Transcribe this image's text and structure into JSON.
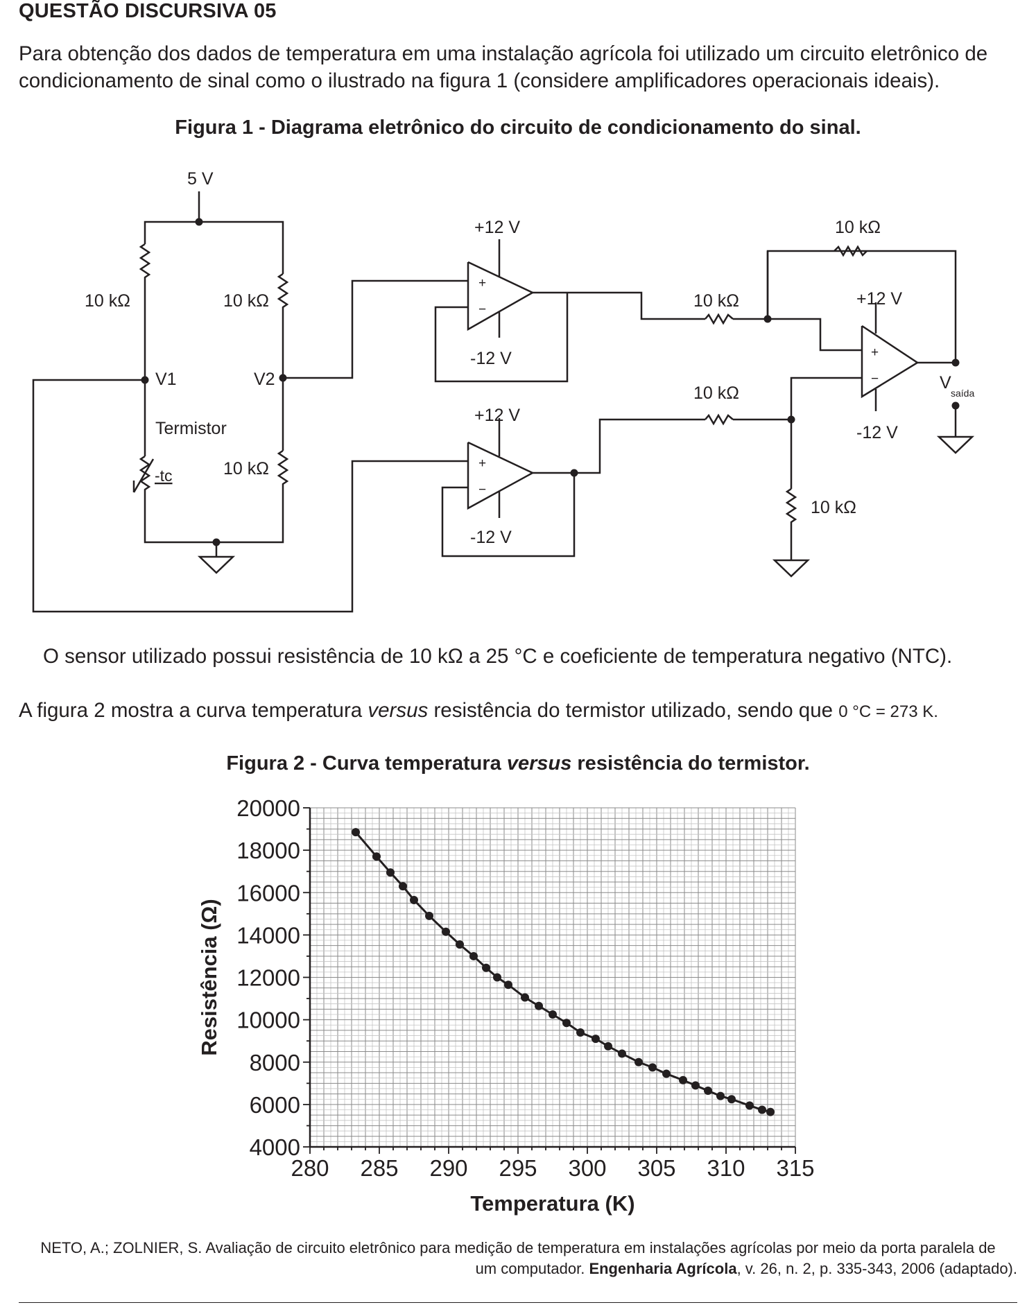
{
  "question_title": "QUESTÃO DISCURSIVA 05",
  "intro_text": "Para obtenção dos dados de temperatura em uma instalação agrícola foi utilizado um circuito eletrônico de condicionamento de sinal como o ilustrado na figura 1 (considere amplificadores operacionais ideais).",
  "figure1": {
    "title": "Figura 1 - Diagrama eletrônico do circuito de condicionamento do sinal.",
    "labels": {
      "supply": "5 V",
      "r_top_left": "10 kΩ",
      "r_top_right": "10 kΩ",
      "r_bottom_right": "10 kΩ",
      "node_v1": "V1",
      "node_v2": "V2",
      "thermistor": "Termistor",
      "tc": "-tc",
      "op1_vpos": "+12 V",
      "op1_vneg": "-12 V",
      "op2_vpos": "+12 V",
      "op2_vneg": "-12 V",
      "op3_vpos": "+12 V",
      "op3_vneg": "-12 V",
      "r_feedback": "10 kΩ",
      "r_in_inv": "10 kΩ",
      "r_in_noninv": "10 kΩ",
      "r_ground": "10 kΩ",
      "vout_main": "V",
      "vout_sub": "saída",
      "plus": "+",
      "minus": "−"
    }
  },
  "sensor_text": "O sensor utilizado possui resistência de 10 kΩ a 25 °C e coeficiente de temperatura negativo (NTC).",
  "fig2_intro_main": "A figura 2 mostra a curva temperatura ",
  "fig2_intro_italic": "versus",
  "fig2_intro_rest": " resistência do termistor utilizado, sendo que ",
  "fig2_intro_small": "0 °C = 273 K.",
  "figure2": {
    "title_a": "Figura 2 - Curva temperatura ",
    "title_italic": "versus",
    "title_b": " resistência do termistor."
  },
  "chart_data": {
    "type": "line",
    "xlabel": "Temperatura (K)",
    "ylabel": "Resistência (Ω)",
    "xlim": [
      280,
      315
    ],
    "ylim": [
      4000,
      20000
    ],
    "x_ticks": [
      "280",
      "285",
      "290",
      "295",
      "300",
      "305",
      "310",
      "315"
    ],
    "y_ticks": [
      "20000",
      "18000",
      "16000",
      "14000",
      "12000",
      "10000",
      "8000",
      "6000",
      "4000"
    ],
    "grid": true,
    "series": [
      {
        "x": [
          283.3,
          284.8,
          285.8,
          286.7,
          287.5,
          288.6,
          289.8,
          290.8,
          291.8,
          292.7,
          293.5,
          294.3,
          295.5,
          296.5,
          297.5,
          298.5,
          299.5,
          300.6,
          301.5,
          302.5,
          303.7,
          304.7,
          305.7,
          306.9,
          307.8,
          308.7,
          309.6,
          310.4,
          311.7,
          312.6,
          313.2
        ],
        "y": [
          18850,
          17700,
          16950,
          16300,
          15650,
          14900,
          14150,
          13550,
          13000,
          12450,
          12000,
          11650,
          11050,
          10650,
          10250,
          9850,
          9400,
          9100,
          8750,
          8400,
          8000,
          7750,
          7450,
          7150,
          6900,
          6650,
          6400,
          6250,
          5950,
          5750,
          5650
        ]
      }
    ]
  },
  "reference_part1": "NETO, A.; ZOLNIER, S. Avaliação de circuito eletrônico para medição de temperatura em instalações agrícolas por meio da porta paralela de",
  "reference_part2a": "um computador. ",
  "reference_journal": "Engenharia Agrícola",
  "reference_part2b": ", v. 26, n. 2, p. 335-343, 2006 (adaptado)."
}
